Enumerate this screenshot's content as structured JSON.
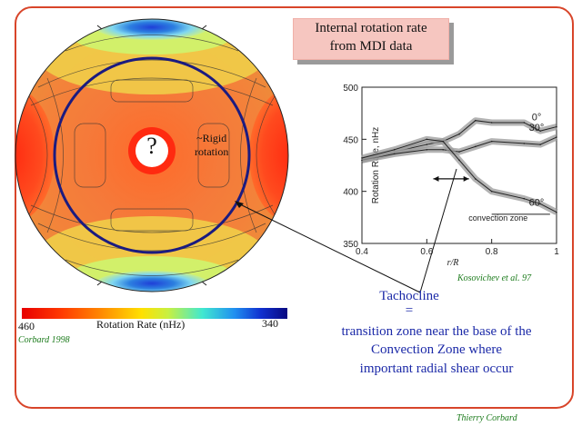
{
  "title": {
    "line1": "Internal rotation rate",
    "line2": "from MDI data"
  },
  "disk": {
    "question_mark": "?",
    "rigid_line1": "~Rigid",
    "rigid_line2": "rotation"
  },
  "colorbar": {
    "left_value": "460",
    "label": "Rotation Rate (nHz)",
    "right_value": "340",
    "citation": "Corbard 1998"
  },
  "chart_data": {
    "type": "line",
    "xlabel": "r/R",
    "ylabel": "Rotation Rate, nHz",
    "xlim": [
      0.4,
      1.0
    ],
    "ylim": [
      350,
      500
    ],
    "x_ticks": [
      "0.4",
      "0.6",
      "0.8",
      "1"
    ],
    "y_ticks": [
      "350",
      "400",
      "450",
      "500"
    ],
    "series": [
      {
        "name": "0°",
        "x": [
          0.4,
          0.5,
          0.6,
          0.65,
          0.7,
          0.75,
          0.8,
          0.9,
          0.95,
          1.0
        ],
        "values": [
          430,
          438,
          445,
          448,
          455,
          468,
          466,
          466,
          458,
          462
        ]
      },
      {
        "name": "30°",
        "x": [
          0.4,
          0.5,
          0.6,
          0.65,
          0.7,
          0.75,
          0.8,
          0.9,
          0.95,
          1.0
        ],
        "values": [
          430,
          436,
          440,
          440,
          438,
          443,
          448,
          446,
          445,
          452
        ]
      },
      {
        "name": "60°",
        "x": [
          0.4,
          0.5,
          0.6,
          0.65,
          0.7,
          0.75,
          0.8,
          0.9,
          0.95,
          1.0
        ],
        "values": [
          432,
          440,
          450,
          448,
          430,
          412,
          400,
          393,
          388,
          380
        ]
      }
    ],
    "annotations": [
      "convection zone"
    ],
    "citation": "Kosovichev et al. 97"
  },
  "tachocline": {
    "title": "Tachocline",
    "equals": "=",
    "line1": "transition zone near the base of the",
    "line2": "Convection Zone where",
    "line3": "important radial shear occur"
  },
  "author": "Thierry Corbard",
  "colors": {
    "frame": "#d8452a",
    "text_blue": "#1c2aa8",
    "citation_green": "#1a7a1a"
  }
}
